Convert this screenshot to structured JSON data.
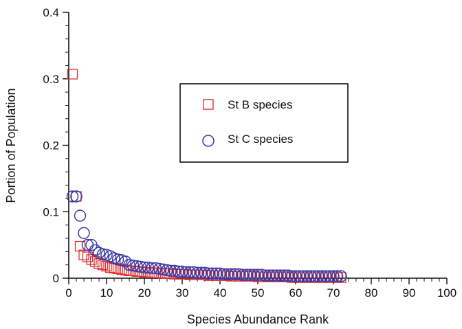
{
  "chart_data": {
    "type": "scatter",
    "title": "",
    "xlabel": "Species Abundance Rank",
    "ylabel": "Portion of Population",
    "xlim": [
      0,
      100
    ],
    "ylim": [
      0,
      0.4
    ],
    "x_ticks": [
      "0",
      "10",
      "20",
      "30",
      "40",
      "50",
      "60",
      "70",
      "80",
      "90",
      "100"
    ],
    "y_ticks": [
      "0",
      "0.1",
      "0.2",
      "0.3",
      "0.4"
    ],
    "grid": false,
    "legend_position": "top-right",
    "series": [
      {
        "name": "St B species",
        "marker": "square",
        "color": "#e03030",
        "x": [
          1,
          2,
          3,
          4,
          5,
          6,
          7,
          8,
          9,
          10,
          11,
          12,
          13,
          14,
          15,
          16,
          17,
          18,
          19,
          20,
          21,
          22,
          23,
          24,
          25,
          26,
          27,
          28,
          29,
          30,
          31,
          32,
          33,
          34,
          35,
          36,
          37,
          38,
          39,
          40,
          41,
          42,
          43,
          44,
          45,
          46,
          47,
          48,
          49,
          50,
          51,
          52,
          53,
          54,
          55,
          56,
          57,
          58,
          59,
          60,
          61,
          62,
          63,
          64,
          65,
          66,
          67,
          68,
          69,
          70,
          71,
          72
        ],
        "y": [
          0.307,
          0.123,
          0.048,
          0.035,
          0.032,
          0.028,
          0.025,
          0.022,
          0.02,
          0.018,
          0.016,
          0.015,
          0.014,
          0.013,
          0.012,
          0.011,
          0.011,
          0.01,
          0.01,
          0.009,
          0.009,
          0.008,
          0.008,
          0.008,
          0.007,
          0.007,
          0.007,
          0.006,
          0.006,
          0.006,
          0.006,
          0.005,
          0.005,
          0.005,
          0.005,
          0.005,
          0.004,
          0.004,
          0.004,
          0.004,
          0.004,
          0.004,
          0.003,
          0.003,
          0.003,
          0.003,
          0.003,
          0.003,
          0.003,
          0.002,
          0.002,
          0.002,
          0.002,
          0.002,
          0.002,
          0.002,
          0.002,
          0.002,
          0.001,
          0.001,
          0.001,
          0.001,
          0.001,
          0.001,
          0.001,
          0.001,
          0.001,
          0.001,
          0.001,
          0.001,
          0.001,
          0.001
        ]
      },
      {
        "name": "St C species",
        "marker": "circle",
        "color": "#3a3aa8",
        "x": [
          1,
          2,
          3,
          4,
          5,
          6,
          7,
          8,
          9,
          10,
          11,
          12,
          13,
          14,
          15,
          16,
          17,
          18,
          19,
          20,
          21,
          22,
          23,
          24,
          25,
          26,
          27,
          28,
          29,
          30,
          31,
          32,
          33,
          34,
          35,
          36,
          37,
          38,
          39,
          40,
          41,
          42,
          43,
          44,
          45,
          46,
          47,
          48,
          49,
          50,
          51,
          52,
          53,
          54,
          55,
          56,
          57,
          58,
          59,
          60,
          61,
          62,
          63,
          64,
          65,
          66,
          67,
          68,
          69,
          70,
          71,
          72
        ],
        "y": [
          0.123,
          0.123,
          0.094,
          0.068,
          0.05,
          0.05,
          0.042,
          0.038,
          0.036,
          0.035,
          0.033,
          0.03,
          0.028,
          0.027,
          0.025,
          0.02,
          0.019,
          0.018,
          0.017,
          0.016,
          0.016,
          0.015,
          0.015,
          0.014,
          0.013,
          0.012,
          0.011,
          0.011,
          0.01,
          0.01,
          0.009,
          0.009,
          0.009,
          0.008,
          0.008,
          0.008,
          0.007,
          0.007,
          0.007,
          0.007,
          0.006,
          0.006,
          0.006,
          0.006,
          0.006,
          0.005,
          0.005,
          0.005,
          0.005,
          0.005,
          0.005,
          0.004,
          0.004,
          0.004,
          0.004,
          0.004,
          0.004,
          0.004,
          0.003,
          0.003,
          0.003,
          0.003,
          0.003,
          0.003,
          0.003,
          0.003,
          0.003,
          0.003,
          0.003,
          0.003,
          0.003,
          0.003
        ]
      }
    ]
  }
}
